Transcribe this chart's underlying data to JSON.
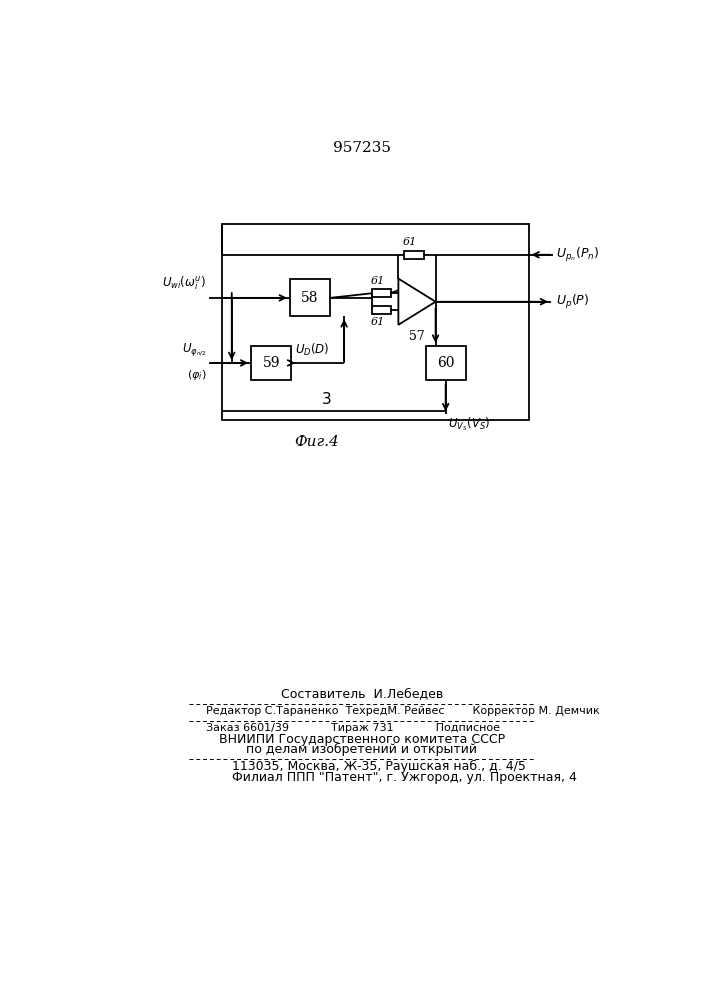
{
  "title": "957235",
  "fig_label": "Фиг.4",
  "background": "#ffffff",
  "line_color": "#000000",
  "font_color": "#000000",
  "footer_lines": [
    "Составитель  И.Лебедев",
    "Редактор С.Тараненко  ТехредМ. Рейвес        Корректор М. Демчик",
    "Заказ 6601/39            Тираж 731            Подписное",
    "ВНИИПИ Государственного комитета СССР",
    "по делам изобретений и открытий",
    "113035, Москва, Ж-35, Раушская наб., д. 4/5",
    "Филиал ППП \"Патент\", г. Ужгород, ул. Проектная, 4"
  ]
}
